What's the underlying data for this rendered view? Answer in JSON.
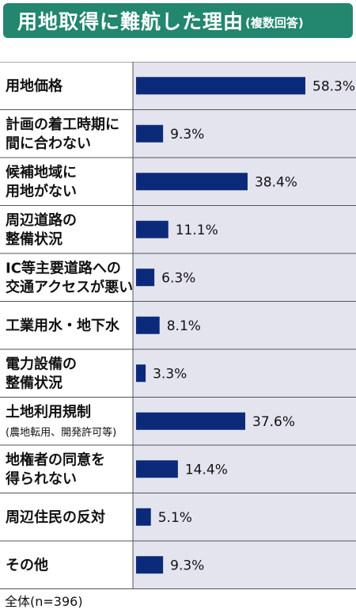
{
  "title": {
    "main": "用地取得に難航した理由",
    "sub": "(複数回答)"
  },
  "footnote": "全体(n=396)",
  "colors": {
    "title_bg": "#23866f",
    "bar": "#0c2a7a",
    "plot_bg": "#e4e4ef",
    "grid": "#555555"
  },
  "chart_data": {
    "type": "bar",
    "orientation": "horizontal",
    "unit": "%",
    "categories": [
      [
        "用地価格"
      ],
      [
        "計画の着工時期に",
        "間に合わない"
      ],
      [
        "候補地域に",
        "用地がない"
      ],
      [
        "周辺道路の",
        "整備状況"
      ],
      [
        "IC等主要道路への",
        "交通アクセスが悪い"
      ],
      [
        "工業用水・地下水"
      ],
      [
        "電力設備の",
        "整備状況"
      ],
      [
        "土地利用規制",
        "(農地転用、開発許可等)"
      ],
      [
        "地権者の同意を",
        "得られない"
      ],
      [
        "周辺住民の反対"
      ],
      [
        "その他"
      ]
    ],
    "values": [
      58.3,
      9.3,
      38.4,
      11.1,
      6.3,
      8.1,
      3.3,
      37.6,
      14.4,
      5.1,
      9.3
    ],
    "labels": [
      "58.3%",
      "9.3%",
      "38.4%",
      "11.1%",
      "6.3%",
      "8.1%",
      "3.3%",
      "37.6%",
      "14.4%",
      "5.1%",
      "9.3%"
    ],
    "xlim": [
      0,
      60
    ],
    "grid": "horizontal row separators"
  }
}
